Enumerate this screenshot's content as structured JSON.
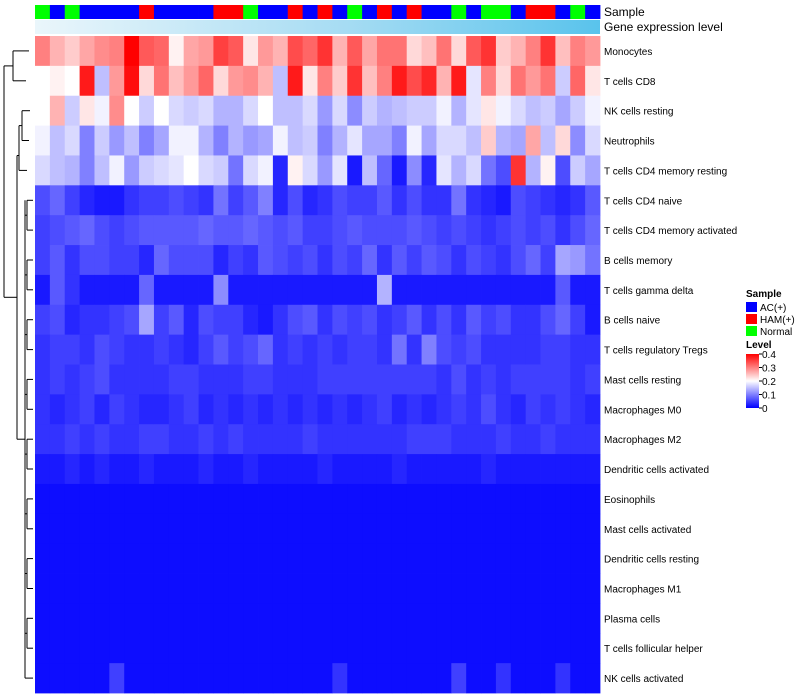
{
  "chart_data": {
    "type": "heatmap",
    "annotations": {
      "sample_label": "Sample",
      "expression_label": "Gene expression level"
    },
    "columns": 38,
    "sample_groups": [
      "N",
      "A",
      "N",
      "A",
      "A",
      "A",
      "A",
      "H",
      "A",
      "A",
      "A",
      "A",
      "H",
      "H",
      "N",
      "A",
      "A",
      "H",
      "A",
      "H",
      "A",
      "N",
      "A",
      "H",
      "A",
      "H",
      "A",
      "A",
      "N",
      "A",
      "N",
      "N",
      "A",
      "H",
      "H",
      "A",
      "N",
      "A"
    ],
    "legend": {
      "sample_title": "Sample",
      "sample_entries": [
        {
          "key": "A",
          "label": "AC(+)",
          "color": "#0000ff"
        },
        {
          "key": "H",
          "label": "HAM(+)",
          "color": "#ff0000"
        },
        {
          "key": "N",
          "label": "Normal",
          "color": "#00ff00"
        }
      ],
      "level_title": "Level",
      "level_ticks": [
        "0.4",
        "0.3",
        "0.2",
        "0.1",
        "0"
      ],
      "level_range": [
        0,
        0.4
      ],
      "colors": {
        "low": "#0000ff",
        "mid": "#ffffff",
        "high": "#ff0000",
        "mid_value": 0.2
      }
    },
    "rows": [
      {
        "label": "Monocytes",
        "values": [
          0.3,
          0.26,
          0.24,
          0.27,
          0.29,
          0.3,
          0.4,
          0.33,
          0.32,
          0.21,
          0.27,
          0.28,
          0.35,
          0.33,
          0.22,
          0.28,
          0.26,
          0.34,
          0.32,
          0.36,
          0.26,
          0.33,
          0.27,
          0.31,
          0.31,
          0.23,
          0.25,
          0.31,
          0.23,
          0.33,
          0.36,
          0.24,
          0.26,
          0.3,
          0.36,
          0.25,
          0.3,
          0.28
        ]
      },
      {
        "label": "T cells CD8",
        "values": [
          0.2,
          0.21,
          0.2,
          0.38,
          0.15,
          0.28,
          0.39,
          0.23,
          0.31,
          0.25,
          0.28,
          0.32,
          0.23,
          0.28,
          0.29,
          0.26,
          0.15,
          0.38,
          0.22,
          0.3,
          0.24,
          0.36,
          0.25,
          0.3,
          0.38,
          0.34,
          0.37,
          0.26,
          0.38,
          0.18,
          0.3,
          0.23,
          0.31,
          0.28,
          0.31,
          0.16,
          0.32,
          0.22
        ]
      },
      {
        "label": "NK cells resting",
        "values": [
          0.2,
          0.26,
          0.16,
          0.22,
          0.19,
          0.29,
          0.2,
          0.16,
          0.2,
          0.17,
          0.16,
          0.17,
          0.14,
          0.14,
          0.17,
          0.2,
          0.15,
          0.15,
          0.17,
          0.12,
          0.17,
          0.11,
          0.16,
          0.14,
          0.15,
          0.16,
          0.16,
          0.19,
          0.14,
          0.18,
          0.22,
          0.19,
          0.17,
          0.15,
          0.16,
          0.13,
          0.16,
          0.19
        ]
      },
      {
        "label": "Neutrophils",
        "values": [
          0.19,
          0.15,
          0.17,
          0.1,
          0.16,
          0.12,
          0.15,
          0.1,
          0.13,
          0.19,
          0.19,
          0.14,
          0.1,
          0.14,
          0.12,
          0.13,
          0.19,
          0.15,
          0.16,
          0.1,
          0.14,
          0.18,
          0.13,
          0.13,
          0.1,
          0.19,
          0.13,
          0.17,
          0.17,
          0.15,
          0.24,
          0.14,
          0.13,
          0.27,
          0.15,
          0.23,
          0.11,
          0.17
        ]
      },
      {
        "label": "T cells CD4 memory resting",
        "values": [
          0.17,
          0.15,
          0.14,
          0.1,
          0.15,
          0.19,
          0.12,
          0.16,
          0.17,
          0.18,
          0.2,
          0.17,
          0.16,
          0.09,
          0.17,
          0.19,
          0.03,
          0.21,
          0.17,
          0.12,
          0.18,
          0.02,
          0.15,
          0.08,
          0.02,
          0.11,
          0.03,
          0.18,
          0.14,
          0.17,
          0.09,
          0.06,
          0.36,
          0.14,
          0.21,
          0.06,
          0.16,
          0.13
        ]
      },
      {
        "label": "T cells CD4 naive",
        "values": [
          0.06,
          0.08,
          0.05,
          0.03,
          0.02,
          0.02,
          0.04,
          0.05,
          0.05,
          0.06,
          0.05,
          0.04,
          0.09,
          0.05,
          0.07,
          0.1,
          0.03,
          0.06,
          0.03,
          0.04,
          0.06,
          0.05,
          0.05,
          0.07,
          0.04,
          0.06,
          0.04,
          0.04,
          0.09,
          0.04,
          0.03,
          0.02,
          0.06,
          0.05,
          0.04,
          0.03,
          0.04,
          0.07
        ]
      },
      {
        "label": "T cells CD4 memory activated",
        "values": [
          0.05,
          0.06,
          0.07,
          0.08,
          0.06,
          0.05,
          0.06,
          0.07,
          0.07,
          0.07,
          0.07,
          0.08,
          0.07,
          0.07,
          0.08,
          0.07,
          0.06,
          0.07,
          0.05,
          0.05,
          0.06,
          0.07,
          0.06,
          0.06,
          0.06,
          0.07,
          0.06,
          0.05,
          0.06,
          0.05,
          0.04,
          0.05,
          0.06,
          0.05,
          0.06,
          0.04,
          0.06,
          0.08
        ]
      },
      {
        "label": "B cells memory",
        "values": [
          0.05,
          0.07,
          0.04,
          0.06,
          0.06,
          0.05,
          0.05,
          0.03,
          0.08,
          0.06,
          0.06,
          0.06,
          0.03,
          0.05,
          0.04,
          0.07,
          0.06,
          0.05,
          0.06,
          0.04,
          0.06,
          0.05,
          0.08,
          0.04,
          0.07,
          0.05,
          0.07,
          0.06,
          0.04,
          0.06,
          0.05,
          0.04,
          0.06,
          0.08,
          0.05,
          0.13,
          0.12,
          0.09
        ]
      },
      {
        "label": "T cells gamma delta",
        "values": [
          0.02,
          0.07,
          0.04,
          0.02,
          0.02,
          0.02,
          0.02,
          0.08,
          0.02,
          0.02,
          0.02,
          0.02,
          0.11,
          0.02,
          0.02,
          0.02,
          0.02,
          0.02,
          0.02,
          0.02,
          0.02,
          0.02,
          0.02,
          0.14,
          0.02,
          0.02,
          0.02,
          0.02,
          0.02,
          0.02,
          0.02,
          0.02,
          0.02,
          0.02,
          0.02,
          0.07,
          0.02,
          0.02
        ]
      },
      {
        "label": "B cells naive",
        "values": [
          0.05,
          0.06,
          0.03,
          0.04,
          0.04,
          0.05,
          0.06,
          0.13,
          0.05,
          0.07,
          0.03,
          0.06,
          0.05,
          0.05,
          0.03,
          0.02,
          0.04,
          0.06,
          0.07,
          0.04,
          0.06,
          0.05,
          0.06,
          0.04,
          0.05,
          0.07,
          0.04,
          0.06,
          0.04,
          0.07,
          0.05,
          0.06,
          0.04,
          0.04,
          0.06,
          0.08,
          0.05,
          0.02
        ]
      },
      {
        "label": "T cells regulatory  Tregs",
        "values": [
          0.04,
          0.05,
          0.05,
          0.04,
          0.06,
          0.05,
          0.04,
          0.04,
          0.05,
          0.04,
          0.03,
          0.05,
          0.07,
          0.05,
          0.06,
          0.08,
          0.04,
          0.05,
          0.04,
          0.05,
          0.04,
          0.05,
          0.05,
          0.04,
          0.09,
          0.04,
          0.1,
          0.06,
          0.05,
          0.06,
          0.04,
          0.04,
          0.04,
          0.04,
          0.05,
          0.05,
          0.04,
          0.04
        ]
      },
      {
        "label": "Mast cells resting",
        "values": [
          0.04,
          0.05,
          0.04,
          0.05,
          0.06,
          0.04,
          0.04,
          0.04,
          0.04,
          0.05,
          0.05,
          0.04,
          0.04,
          0.04,
          0.05,
          0.05,
          0.04,
          0.04,
          0.04,
          0.05,
          0.05,
          0.05,
          0.05,
          0.05,
          0.05,
          0.05,
          0.05,
          0.04,
          0.06,
          0.04,
          0.05,
          0.04,
          0.05,
          0.05,
          0.05,
          0.05,
          0.04,
          0.05
        ]
      },
      {
        "label": "Macrophages M0",
        "values": [
          0.04,
          0.03,
          0.04,
          0.05,
          0.03,
          0.05,
          0.04,
          0.03,
          0.03,
          0.04,
          0.05,
          0.03,
          0.04,
          0.03,
          0.04,
          0.03,
          0.04,
          0.03,
          0.04,
          0.03,
          0.04,
          0.03,
          0.04,
          0.05,
          0.03,
          0.04,
          0.03,
          0.04,
          0.05,
          0.04,
          0.06,
          0.04,
          0.03,
          0.05,
          0.04,
          0.05,
          0.04,
          0.03
        ]
      },
      {
        "label": "Macrophages M2",
        "values": [
          0.04,
          0.04,
          0.05,
          0.04,
          0.05,
          0.04,
          0.04,
          0.05,
          0.05,
          0.04,
          0.04,
          0.05,
          0.04,
          0.05,
          0.04,
          0.04,
          0.04,
          0.04,
          0.05,
          0.04,
          0.04,
          0.04,
          0.04,
          0.04,
          0.04,
          0.05,
          0.05,
          0.05,
          0.04,
          0.04,
          0.04,
          0.05,
          0.04,
          0.04,
          0.05,
          0.04,
          0.04,
          0.04
        ]
      },
      {
        "label": "Dendritic cells activated",
        "values": [
          0.02,
          0.02,
          0.03,
          0.02,
          0.03,
          0.02,
          0.02,
          0.03,
          0.02,
          0.02,
          0.02,
          0.03,
          0.02,
          0.02,
          0.03,
          0.02,
          0.02,
          0.02,
          0.02,
          0.03,
          0.02,
          0.02,
          0.02,
          0.02,
          0.03,
          0.02,
          0.02,
          0.02,
          0.02,
          0.02,
          0.03,
          0.02,
          0.02,
          0.02,
          0.02,
          0.02,
          0.02,
          0.02
        ]
      },
      {
        "label": "Eosinophils",
        "values": [
          0.01,
          0.01,
          0.01,
          0.01,
          0.01,
          0.01,
          0.01,
          0.01,
          0.01,
          0.01,
          0.01,
          0.01,
          0.01,
          0.01,
          0.01,
          0.01,
          0.01,
          0.01,
          0.01,
          0.01,
          0.01,
          0.01,
          0.01,
          0.01,
          0.01,
          0.01,
          0.01,
          0.01,
          0.01,
          0.01,
          0.01,
          0.01,
          0.01,
          0.01,
          0.01,
          0.01,
          0.01,
          0.01
        ]
      },
      {
        "label": "Mast cells activated",
        "values": [
          0.01,
          0.01,
          0.01,
          0.01,
          0.01,
          0.01,
          0.01,
          0.01,
          0.01,
          0.01,
          0.01,
          0.01,
          0.01,
          0.01,
          0.01,
          0.01,
          0.01,
          0.01,
          0.01,
          0.01,
          0.01,
          0.01,
          0.01,
          0.01,
          0.01,
          0.01,
          0.01,
          0.01,
          0.01,
          0.01,
          0.01,
          0.01,
          0.01,
          0.01,
          0.01,
          0.01,
          0.01,
          0.01
        ]
      },
      {
        "label": "Dendritic cells resting",
        "values": [
          0.01,
          0.01,
          0.01,
          0.01,
          0.01,
          0.01,
          0.01,
          0.01,
          0.01,
          0.01,
          0.01,
          0.01,
          0.01,
          0.01,
          0.01,
          0.01,
          0.01,
          0.01,
          0.01,
          0.01,
          0.01,
          0.01,
          0.01,
          0.01,
          0.01,
          0.01,
          0.01,
          0.01,
          0.01,
          0.01,
          0.01,
          0.01,
          0.01,
          0.01,
          0.01,
          0.01,
          0.01,
          0.01
        ]
      },
      {
        "label": "Macrophages M1",
        "values": [
          0.01,
          0.01,
          0.01,
          0.01,
          0.01,
          0.01,
          0.01,
          0.01,
          0.01,
          0.01,
          0.01,
          0.01,
          0.01,
          0.01,
          0.01,
          0.01,
          0.01,
          0.01,
          0.01,
          0.01,
          0.01,
          0.01,
          0.01,
          0.01,
          0.01,
          0.01,
          0.01,
          0.01,
          0.01,
          0.01,
          0.01,
          0.01,
          0.01,
          0.01,
          0.01,
          0.01,
          0.01,
          0.01
        ]
      },
      {
        "label": "Plasma cells",
        "values": [
          0.01,
          0.01,
          0.01,
          0.01,
          0.01,
          0.01,
          0.01,
          0.01,
          0.01,
          0.01,
          0.01,
          0.01,
          0.01,
          0.01,
          0.01,
          0.01,
          0.01,
          0.01,
          0.01,
          0.01,
          0.01,
          0.01,
          0.01,
          0.01,
          0.01,
          0.01,
          0.01,
          0.01,
          0.01,
          0.01,
          0.01,
          0.01,
          0.01,
          0.01,
          0.01,
          0.01,
          0.01,
          0.01
        ]
      },
      {
        "label": "T cells follicular helper",
        "values": [
          0.01,
          0.01,
          0.01,
          0.01,
          0.01,
          0.01,
          0.01,
          0.01,
          0.01,
          0.01,
          0.01,
          0.01,
          0.01,
          0.01,
          0.01,
          0.01,
          0.01,
          0.01,
          0.01,
          0.01,
          0.01,
          0.01,
          0.01,
          0.01,
          0.01,
          0.01,
          0.01,
          0.01,
          0.01,
          0.01,
          0.01,
          0.01,
          0.01,
          0.01,
          0.01,
          0.01,
          0.01,
          0.01
        ]
      },
      {
        "label": "NK cells activated",
        "values": [
          0.01,
          0.01,
          0.01,
          0.01,
          0.01,
          0.05,
          0.01,
          0.01,
          0.01,
          0.01,
          0.01,
          0.01,
          0.01,
          0.01,
          0.01,
          0.01,
          0.01,
          0.01,
          0.01,
          0.01,
          0.04,
          0.01,
          0.01,
          0.01,
          0.01,
          0.01,
          0.01,
          0.01,
          0.05,
          0.01,
          0.01,
          0.04,
          0.01,
          0.01,
          0.01,
          0.04,
          0.01,
          0.01
        ]
      }
    ]
  }
}
